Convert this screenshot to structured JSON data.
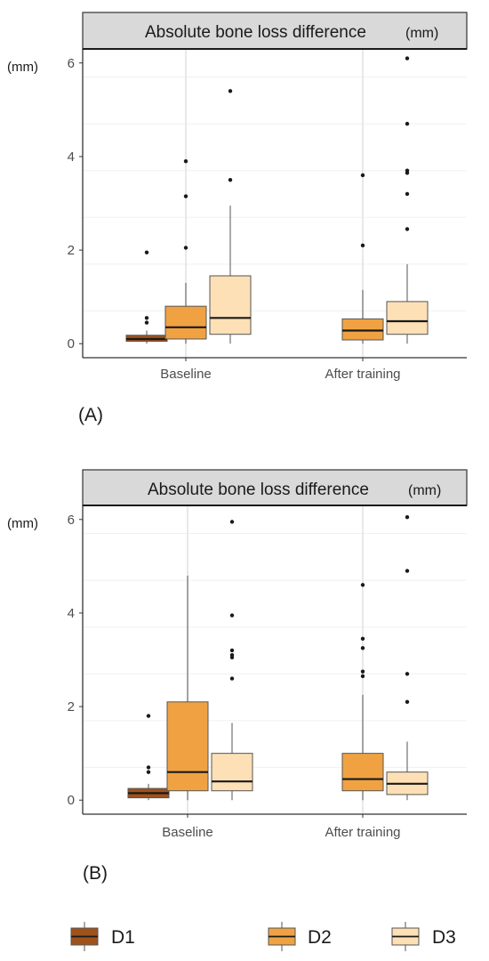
{
  "chart_data": [
    {
      "type": "box",
      "panel_label": "(A)",
      "title": "Absolute bone loss difference",
      "title_unit": "(mm)",
      "ylabel": "(mm)",
      "ylim": [
        -0.3,
        6.3
      ],
      "yticks": [
        0,
        2,
        4,
        6
      ],
      "categories": [
        "Baseline",
        "After training"
      ],
      "grid": true,
      "series": [
        {
          "name": "D1",
          "color": "#a0521b",
          "boxes": [
            {
              "category": "Baseline",
              "min": 0.0,
              "q1": 0.05,
              "median": 0.1,
              "q3": 0.18,
              "max": 0.28,
              "outliers": [
                0.45,
                0.55,
                1.95
              ]
            }
          ]
        },
        {
          "name": "D2",
          "color": "#f0a243",
          "boxes": [
            {
              "category": "Baseline",
              "min": 0.0,
              "q1": 0.1,
              "median": 0.35,
              "q3": 0.8,
              "max": 1.3,
              "outliers": [
                2.05,
                3.15,
                3.9
              ]
            },
            {
              "category": "After training",
              "min": 0.0,
              "q1": 0.08,
              "median": 0.28,
              "q3": 0.53,
              "max": 1.15,
              "outliers": [
                2.1,
                3.6
              ]
            }
          ]
        },
        {
          "name": "D3",
          "color": "#fde0b5",
          "boxes": [
            {
              "category": "Baseline",
              "min": 0.0,
              "q1": 0.2,
              "median": 0.55,
              "q3": 1.45,
              "max": 2.95,
              "outliers": [
                3.5,
                5.4
              ]
            },
            {
              "category": "After training",
              "min": 0.0,
              "q1": 0.2,
              "median": 0.48,
              "q3": 0.9,
              "max": 1.7,
              "outliers": [
                2.45,
                3.2,
                3.65,
                3.7,
                4.7,
                6.1
              ]
            }
          ]
        }
      ]
    },
    {
      "type": "box",
      "panel_label": "(B)",
      "title": "Absolute bone loss difference",
      "title_unit": "(mm)",
      "ylabel": "(mm)",
      "ylim": [
        -0.3,
        6.3
      ],
      "yticks": [
        0,
        2,
        4,
        6
      ],
      "categories": [
        "Baseline",
        "After training"
      ],
      "grid": true,
      "series": [
        {
          "name": "D1",
          "color": "#a0521b",
          "boxes": [
            {
              "category": "Baseline",
              "min": 0.0,
              "q1": 0.05,
              "median": 0.15,
              "q3": 0.25,
              "max": 0.35,
              "outliers": [
                0.6,
                0.7,
                1.8
              ]
            }
          ]
        },
        {
          "name": "D2",
          "color": "#f0a243",
          "boxes": [
            {
              "category": "Baseline",
              "min": 0.0,
              "q1": 0.2,
              "median": 0.6,
              "q3": 2.1,
              "max": 4.8,
              "outliers": []
            },
            {
              "category": "After training",
              "min": 0.0,
              "q1": 0.2,
              "median": 0.45,
              "q3": 1.0,
              "max": 2.25,
              "outliers": [
                2.65,
                2.75,
                3.25,
                3.45,
                4.6
              ]
            }
          ]
        },
        {
          "name": "D3",
          "color": "#fde0b5",
          "boxes": [
            {
              "category": "Baseline",
              "min": 0.0,
              "q1": 0.2,
              "median": 0.4,
              "q3": 1.0,
              "max": 1.65,
              "outliers": [
                2.6,
                3.05,
                3.1,
                3.2,
                3.95,
                5.95
              ]
            },
            {
              "category": "After training",
              "min": 0.0,
              "q1": 0.12,
              "median": 0.35,
              "q3": 0.6,
              "max": 1.25,
              "outliers": [
                2.1,
                2.7,
                4.9,
                6.05
              ]
            }
          ]
        }
      ]
    }
  ],
  "legend": {
    "position": "bottom",
    "items": [
      {
        "name": "D1",
        "color": "#a0521b"
      },
      {
        "name": "D2",
        "color": "#f0a243"
      },
      {
        "name": "D3",
        "color": "#fde0b5"
      }
    ]
  }
}
